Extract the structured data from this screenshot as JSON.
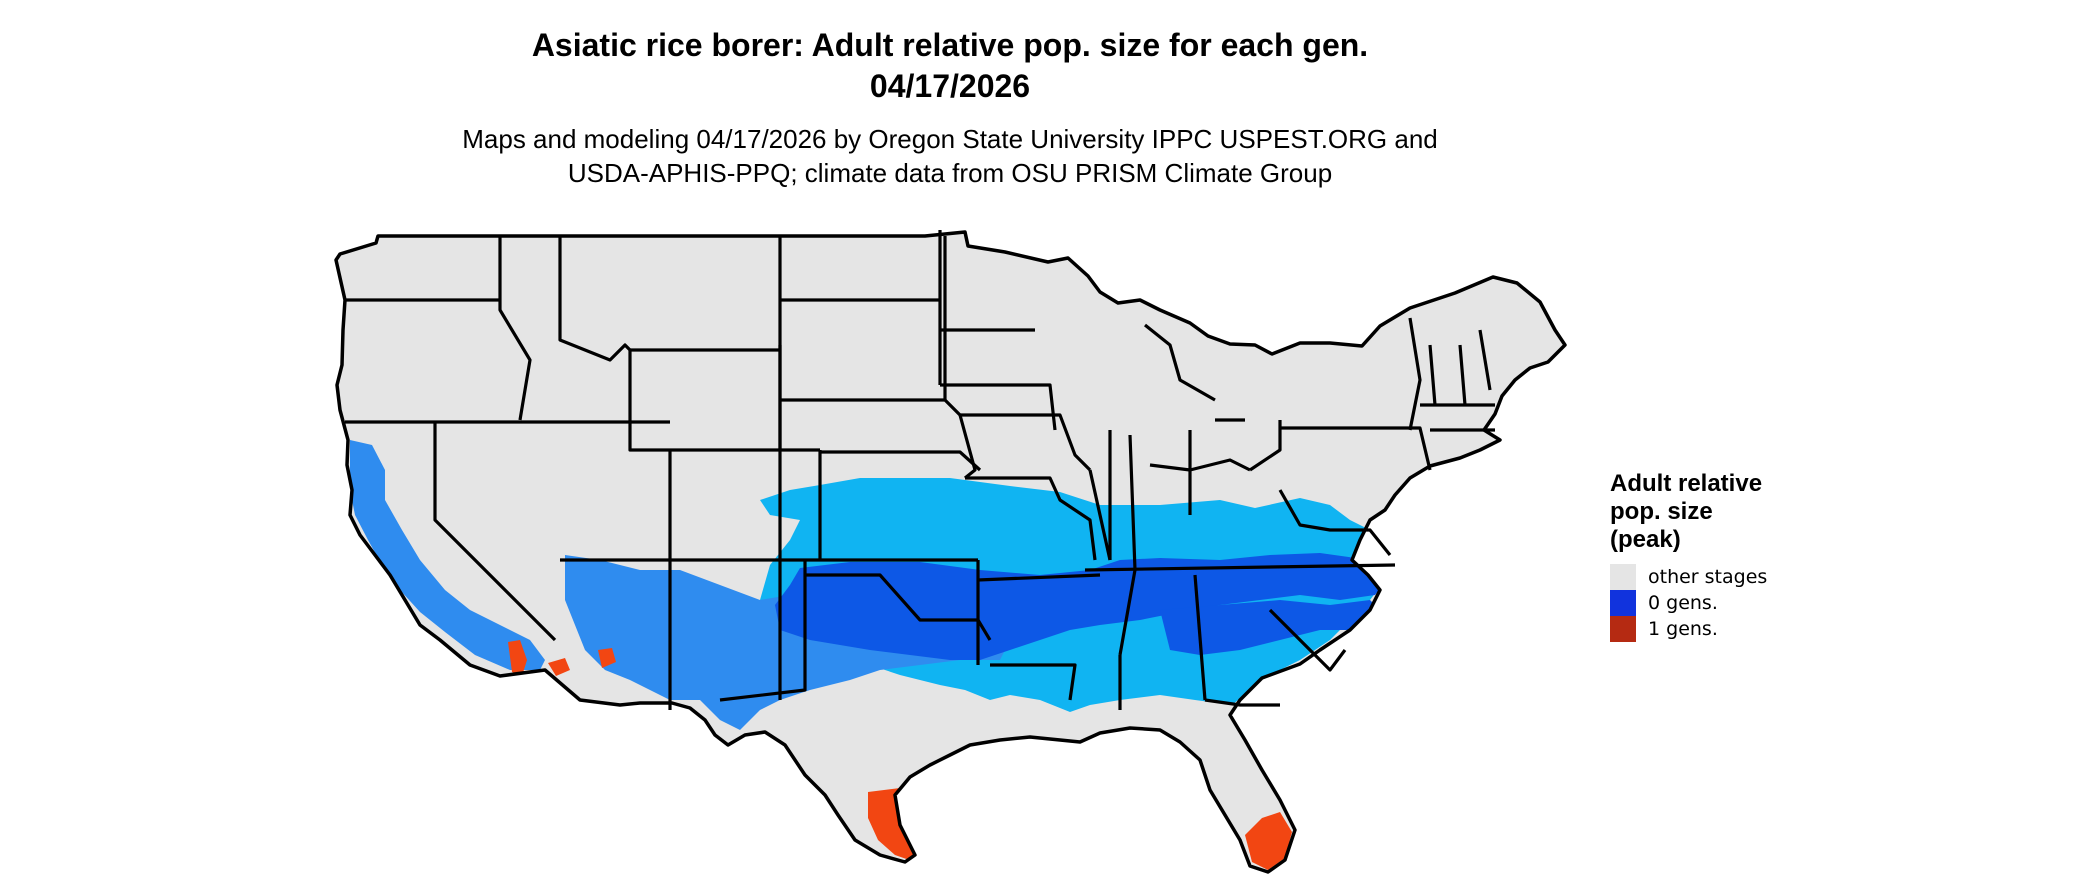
{
  "title": {
    "line1": "Asiatic rice borer: Adult relative pop. size for each gen.",
    "line2": "04/17/2026"
  },
  "subtitle": {
    "line1": "Maps and modeling 04/17/2026 by Oregon State University IPPC USPEST.ORG and",
    "line2": "USDA-APHIS-PPQ; climate data from OSU PRISM Climate Group"
  },
  "legend": {
    "title_lines": [
      "Adult relative",
      "pop. size",
      "(peak)"
    ],
    "items": [
      {
        "label": "other stages",
        "color": "#e5e5e5"
      },
      {
        "label": "0 gens.",
        "color": "#1133dd"
      },
      {
        "label": "1 gens.",
        "color": "#b52a12"
      }
    ]
  },
  "map_colors": {
    "land": "#e5e5e5",
    "border": "#000000",
    "light_blue": "#10b4f2",
    "mid_blue": "#2f8cef",
    "deep_blue": "#0d58e6",
    "orange_red": "#f24612"
  }
}
